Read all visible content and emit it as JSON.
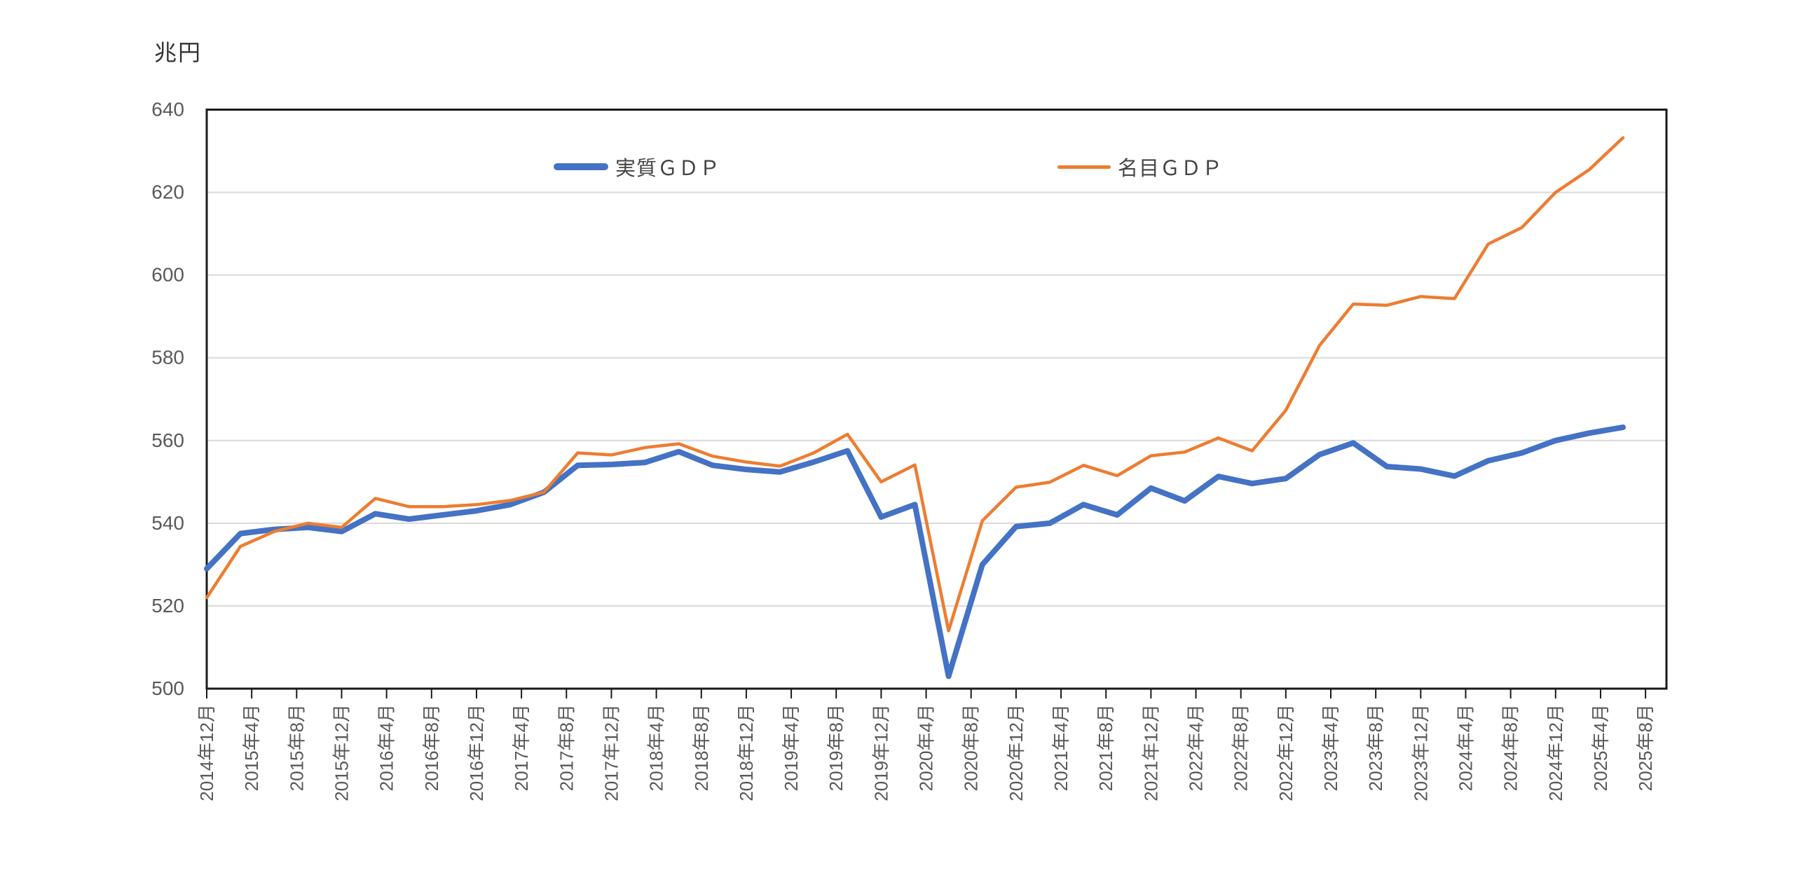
{
  "unit_label": "兆円",
  "legend": {
    "real_label": "実質ＧＤＰ",
    "nominal_label": "名目ＧＤＰ"
  },
  "chart_data": {
    "type": "line",
    "title": "兆円",
    "ylabel": "兆円",
    "xlabel": "",
    "ylim": [
      500,
      640
    ],
    "y_step": 20,
    "y_tick_labels": [
      "500",
      "520",
      "540",
      "560",
      "580",
      "600",
      "620",
      "640"
    ],
    "grid": "horizontal-only",
    "legend_position": "top-inside",
    "x_start": "2014年12月",
    "x_point_interval_months": 3,
    "x_label_interval_months": 4,
    "x_labels": [
      "2014年12月",
      "2015年4月",
      "2015年8月",
      "2015年12月",
      "2016年4月",
      "2016年8月",
      "2016年12月",
      "2017年4月",
      "2017年8月",
      "2017年12月",
      "2018年4月",
      "2018年8月",
      "2018年12月",
      "2019年4月",
      "2019年8月",
      "2019年12月",
      "2020年4月",
      "2020年8月",
      "2020年12月",
      "2021年4月",
      "2021年8月",
      "2021年12月",
      "2022年4月",
      "2022年8月",
      "2022年12月",
      "2023年4月",
      "2023年8月",
      "2023年12月",
      "2024年4月",
      "2024年8月",
      "2024年12月",
      "2025年4月",
      "2025年8月"
    ],
    "series": [
      {
        "name": "実質ＧＤＰ",
        "color": "#4472C4",
        "values": [
          529.0,
          537.5,
          538.5,
          539.0,
          538.0,
          542.3,
          541.0,
          542.0,
          543.0,
          544.5,
          547.5,
          554.0,
          554.2,
          554.7,
          557.3,
          554.0,
          553.0,
          552.4,
          554.8,
          557.5,
          541.5,
          544.5,
          503.0,
          530.0,
          539.2,
          540.0,
          544.5,
          542.0,
          548.5,
          545.4,
          551.3,
          549.6,
          550.8,
          556.6,
          559.4,
          553.7,
          553.1,
          551.4,
          555.1,
          557.0,
          560.0,
          561.8,
          563.2
        ]
      },
      {
        "name": "名目ＧＤＰ",
        "color": "#ED7D31",
        "values": [
          522.0,
          534.4,
          538.0,
          540.0,
          539.0,
          546.0,
          544.0,
          544.0,
          544.5,
          545.5,
          547.5,
          557.0,
          556.5,
          558.3,
          559.2,
          556.2,
          554.8,
          553.8,
          557.0,
          561.5,
          550.0,
          554.1,
          514.0,
          540.6,
          548.7,
          549.9,
          554.0,
          551.5,
          556.3,
          557.2,
          560.6,
          557.5,
          567.3,
          583.0,
          593.0,
          592.7,
          594.8,
          594.3,
          607.5,
          611.5,
          620.0,
          625.5,
          633.2
        ]
      }
    ],
    "colors": {
      "real_gdp": "#4472C4",
      "nominal_gdp": "#ED7D31",
      "gridline": "#D9D9D9",
      "axis_line": "#1a1a1a",
      "tick_label": "#595959"
    }
  }
}
